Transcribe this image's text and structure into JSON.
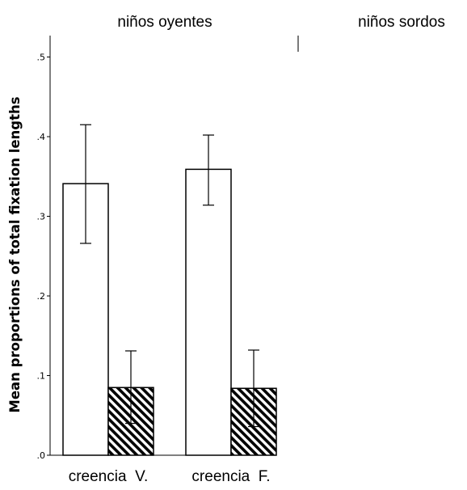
{
  "chart_data": {
    "type": "bar",
    "panels": [
      {
        "title": "niños oyentes",
        "categories": [
          "creencia  V.",
          "creencia  F."
        ],
        "series": [
          {
            "fill": "#ffffff",
            "values": [
              0.341,
              0.359
            ],
            "error_low": [
              0.266,
              0.314
            ],
            "error_high": [
              0.415,
              0.402
            ]
          },
          {
            "fill": "hatched",
            "values": [
              0.085,
              0.084
            ],
            "error_low": [
              0.04,
              0.036
            ],
            "error_high": [
              0.131,
              0.132
            ]
          }
        ]
      },
      {
        "title": "niños sordos",
        "categories": [],
        "series": []
      }
    ],
    "ylabel": "Mean proportions of total fixation lengths",
    "ylim": [
      0,
      0.52
    ],
    "yticks": [
      0.0,
      0.1,
      0.2,
      0.3,
      0.4,
      0.5
    ],
    "ytick_labels": [
      ".0",
      ".1",
      ".2",
      ".3",
      ".4",
      ".5"
    ],
    "grid": false,
    "colors": {
      "bar_outline": "#000000",
      "axis": "#000000",
      "hatch": "#000000"
    }
  }
}
